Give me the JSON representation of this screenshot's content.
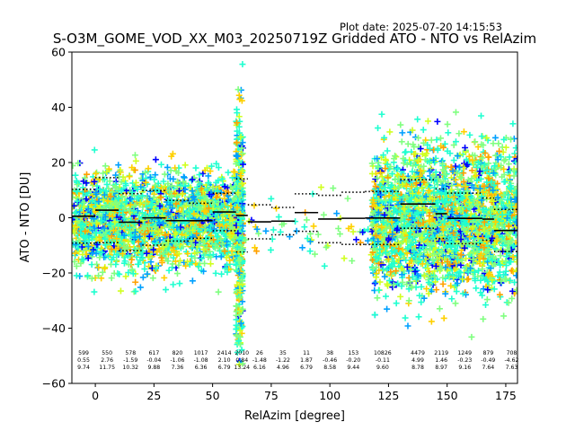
{
  "header": {
    "plot_date": "Plot date: 2025-07-20 14:15:53"
  },
  "chart_data": {
    "type": "scatter",
    "title": "S-O3M_GOME_VOD_XX_M03_20250719Z Gridded ATO - NTO vs RelAzim",
    "xlabel": "RelAzim [degree]",
    "ylabel": "ATO - NTO [DU]",
    "xlim": [
      -10,
      180
    ],
    "ylim": [
      -60,
      60
    ],
    "xticks": [
      0,
      25,
      50,
      75,
      100,
      125,
      150,
      175
    ],
    "yticks": [
      -60,
      -40,
      -20,
      0,
      20,
      40,
      60
    ],
    "grid": false,
    "marker": "+",
    "colors": [
      "#0000ff",
      "#00a0ff",
      "#20ffd0",
      "#80ff80",
      "#d0ff20",
      "#ffd000",
      "#ffa000"
    ],
    "bin_centers": [
      -5,
      5,
      15,
      25,
      35,
      45,
      55,
      62.5,
      70,
      80,
      90,
      100,
      110,
      122.5,
      137.5,
      147.5,
      157.5,
      167.5,
      177.5
    ],
    "bin_edges": [
      -10,
      0,
      10,
      20,
      30,
      40,
      50,
      60,
      65,
      75,
      85,
      95,
      105,
      115,
      130,
      145,
      150,
      165,
      170,
      180
    ],
    "bin_stats": [
      {
        "n": "599",
        "mean": "0.55",
        "std": "9.74"
      },
      {
        "n": "550",
        "mean": "2.76",
        "std": "11.75"
      },
      {
        "n": "578",
        "mean": "-1.59",
        "std": "10.32"
      },
      {
        "n": "617",
        "mean": "-0.04",
        "std": "9.88"
      },
      {
        "n": "820",
        "mean": "-1.06",
        "std": "7.36"
      },
      {
        "n": "1017",
        "mean": "-1.08",
        "std": "6.36"
      },
      {
        "n": "2414",
        "mean": "2.10",
        "std": "6.79"
      },
      {
        "n": "2010",
        "mean": "0.84",
        "std": "13.24"
      },
      {
        "n": "26",
        "mean": "-1.48",
        "std": "6.16"
      },
      {
        "n": "35",
        "mean": "-1.22",
        "std": "4.96"
      },
      {
        "n": "11",
        "mean": "1.87",
        "std": "6.79"
      },
      {
        "n": "38",
        "mean": "-0.46",
        "std": "8.58"
      },
      {
        "n": "153",
        "mean": "-0.20",
        "std": "9.44"
      },
      {
        "n": "10826",
        "mean": "-0.11",
        "std": "9.60"
      },
      {
        "n": "4479",
        "mean": "4.99",
        "std": "8.78"
      },
      {
        "n": "2119",
        "mean": "1.46",
        "std": "8.97"
      },
      {
        "n": "1249",
        "mean": "-0.23",
        "std": "9.16"
      },
      {
        "n": "879",
        "mean": "-0.49",
        "std": "7.64"
      },
      {
        "n": "708",
        "mean": "-4.62",
        "std": "7.63"
      }
    ],
    "scatter_regions": [
      {
        "x": [
          -10,
          63
        ],
        "y": [
          -20,
          18
        ],
        "density": 2200
      },
      {
        "x": [
          60,
          63
        ],
        "y": [
          -58,
          45
        ],
        "density": 350
      },
      {
        "x": [
          63,
          118
        ],
        "y": [
          -18,
          12
        ],
        "density": 60
      },
      {
        "x": [
          118,
          180
        ],
        "y": [
          -30,
          28
        ],
        "density": 2600
      }
    ]
  }
}
